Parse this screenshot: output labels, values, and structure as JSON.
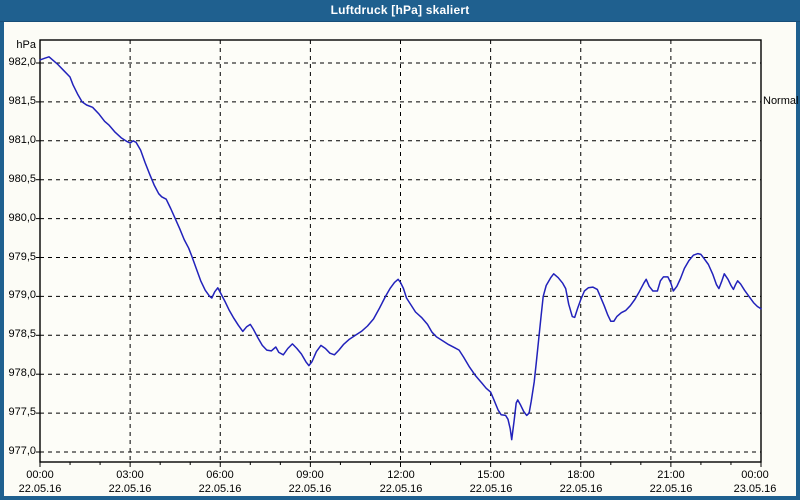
{
  "window": {
    "title": "Luftdruck [hPa] skaliert"
  },
  "colors": {
    "titlebar_bg": "#1f608f",
    "frame_border": "#1f608f",
    "content_bg": "#fcfcf6",
    "line": "#2222bb",
    "grid": "#000000",
    "text": "#000000"
  },
  "chart_data": {
    "type": "line",
    "title": "Luftdruck [hPa] skaliert",
    "unit_label": "hPa",
    "legend_position": "none",
    "grid": "dashed-both-axes",
    "y_axis": {
      "min": 977.0,
      "max": 982.0,
      "step": 0.5,
      "tick_labels": [
        "982,0",
        "981,5",
        "981,0",
        "980,5",
        "980,0",
        "979,5",
        "979,0",
        "978,5",
        "978,0",
        "977,5",
        "977,0"
      ]
    },
    "x_axis": {
      "hours_span": 24,
      "major_step_hours": 3,
      "minor_step_hours": 1,
      "tick_labels": [
        {
          "time": "00:00",
          "date": "22.05.16"
        },
        {
          "time": "03:00",
          "date": "22.05.16"
        },
        {
          "time": "06:00",
          "date": "22.05.16"
        },
        {
          "time": "09:00",
          "date": "22.05.16"
        },
        {
          "time": "12:00",
          "date": "22.05.16"
        },
        {
          "time": "15:00",
          "date": "22.05.16"
        },
        {
          "time": "18:00",
          "date": "22.05.16"
        },
        {
          "time": "21:00",
          "date": "22.05.16"
        },
        {
          "time": "00:00",
          "date": "23.05.16"
        }
      ]
    },
    "right_axis_label": "Normal",
    "normal_level_hpa": 981.5,
    "series": [
      {
        "name": "Luftdruck",
        "color": "#2222bb",
        "points": [
          [
            0.0,
            982.04
          ],
          [
            0.15,
            982.06
          ],
          [
            0.3,
            982.08
          ],
          [
            0.45,
            982.03
          ],
          [
            0.6,
            981.98
          ],
          [
            0.8,
            981.9
          ],
          [
            1.0,
            981.82
          ],
          [
            1.1,
            981.72
          ],
          [
            1.25,
            981.6
          ],
          [
            1.4,
            981.5
          ],
          [
            1.55,
            981.46
          ],
          [
            1.75,
            981.43
          ],
          [
            1.95,
            981.35
          ],
          [
            2.15,
            981.25
          ],
          [
            2.3,
            981.2
          ],
          [
            2.5,
            981.11
          ],
          [
            2.7,
            981.04
          ],
          [
            2.9,
            980.99
          ],
          [
            3.0,
            980.97
          ],
          [
            3.1,
            981.0
          ],
          [
            3.2,
            980.98
          ],
          [
            3.35,
            980.88
          ],
          [
            3.5,
            980.72
          ],
          [
            3.65,
            980.57
          ],
          [
            3.8,
            980.43
          ],
          [
            3.95,
            980.32
          ],
          [
            4.05,
            980.28
          ],
          [
            4.2,
            980.25
          ],
          [
            4.35,
            980.13
          ],
          [
            4.5,
            980.0
          ],
          [
            4.65,
            979.87
          ],
          [
            4.8,
            979.73
          ],
          [
            4.95,
            979.62
          ],
          [
            5.05,
            979.52
          ],
          [
            5.2,
            979.36
          ],
          [
            5.35,
            979.2
          ],
          [
            5.5,
            979.08
          ],
          [
            5.65,
            979.0
          ],
          [
            5.72,
            978.98
          ],
          [
            5.82,
            979.06
          ],
          [
            5.92,
            979.11
          ],
          [
            6.0,
            979.05
          ],
          [
            6.15,
            978.94
          ],
          [
            6.3,
            978.82
          ],
          [
            6.45,
            978.72
          ],
          [
            6.6,
            978.63
          ],
          [
            6.75,
            978.55
          ],
          [
            6.88,
            978.61
          ],
          [
            7.0,
            978.64
          ],
          [
            7.1,
            978.58
          ],
          [
            7.25,
            978.47
          ],
          [
            7.4,
            978.37
          ],
          [
            7.55,
            978.31
          ],
          [
            7.7,
            978.3
          ],
          [
            7.85,
            978.35
          ],
          [
            7.95,
            978.28
          ],
          [
            8.1,
            978.25
          ],
          [
            8.25,
            978.33
          ],
          [
            8.4,
            978.39
          ],
          [
            8.55,
            978.33
          ],
          [
            8.7,
            978.26
          ],
          [
            8.85,
            978.16
          ],
          [
            8.95,
            978.11
          ],
          [
            9.05,
            978.16
          ],
          [
            9.2,
            978.29
          ],
          [
            9.35,
            978.37
          ],
          [
            9.5,
            978.33
          ],
          [
            9.65,
            978.27
          ],
          [
            9.8,
            978.25
          ],
          [
            9.95,
            978.31
          ],
          [
            10.1,
            978.38
          ],
          [
            10.3,
            978.45
          ],
          [
            10.5,
            978.5
          ],
          [
            10.7,
            978.55
          ],
          [
            10.9,
            978.62
          ],
          [
            11.1,
            978.71
          ],
          [
            11.3,
            978.85
          ],
          [
            11.5,
            979.0
          ],
          [
            11.65,
            979.1
          ],
          [
            11.8,
            979.18
          ],
          [
            11.92,
            979.22
          ],
          [
            12.0,
            979.18
          ],
          [
            12.1,
            979.1
          ],
          [
            12.2,
            978.98
          ],
          [
            12.35,
            978.89
          ],
          [
            12.5,
            978.8
          ],
          [
            12.7,
            978.73
          ],
          [
            12.9,
            978.64
          ],
          [
            13.05,
            978.54
          ],
          [
            13.2,
            978.48
          ],
          [
            13.4,
            978.43
          ],
          [
            13.6,
            978.38
          ],
          [
            13.8,
            978.34
          ],
          [
            13.95,
            978.31
          ],
          [
            14.1,
            978.22
          ],
          [
            14.3,
            978.09
          ],
          [
            14.5,
            977.98
          ],
          [
            14.7,
            977.89
          ],
          [
            14.85,
            977.82
          ],
          [
            15.0,
            977.77
          ],
          [
            15.1,
            977.68
          ],
          [
            15.25,
            977.54
          ],
          [
            15.35,
            977.48
          ],
          [
            15.5,
            977.47
          ],
          [
            15.58,
            977.42
          ],
          [
            15.65,
            977.3
          ],
          [
            15.7,
            977.16
          ],
          [
            15.78,
            977.4
          ],
          [
            15.85,
            977.63
          ],
          [
            15.9,
            977.67
          ],
          [
            16.0,
            977.6
          ],
          [
            16.1,
            977.52
          ],
          [
            16.2,
            977.47
          ],
          [
            16.28,
            977.5
          ],
          [
            16.35,
            977.65
          ],
          [
            16.45,
            977.9
          ],
          [
            16.52,
            978.15
          ],
          [
            16.6,
            978.45
          ],
          [
            16.68,
            978.75
          ],
          [
            16.75,
            979.0
          ],
          [
            16.85,
            979.14
          ],
          [
            17.0,
            979.24
          ],
          [
            17.1,
            979.29
          ],
          [
            17.25,
            979.24
          ],
          [
            17.4,
            979.17
          ],
          [
            17.5,
            979.1
          ],
          [
            17.6,
            978.9
          ],
          [
            17.72,
            978.74
          ],
          [
            17.8,
            978.73
          ],
          [
            17.9,
            978.85
          ],
          [
            18.0,
            978.96
          ],
          [
            18.12,
            979.07
          ],
          [
            18.25,
            979.11
          ],
          [
            18.4,
            979.12
          ],
          [
            18.55,
            979.09
          ],
          [
            18.65,
            979.0
          ],
          [
            18.78,
            978.88
          ],
          [
            18.9,
            978.76
          ],
          [
            19.0,
            978.68
          ],
          [
            19.1,
            978.68
          ],
          [
            19.2,
            978.74
          ],
          [
            19.35,
            978.79
          ],
          [
            19.5,
            978.82
          ],
          [
            19.65,
            978.88
          ],
          [
            19.8,
            978.96
          ],
          [
            19.95,
            979.06
          ],
          [
            20.1,
            979.17
          ],
          [
            20.18,
            979.22
          ],
          [
            20.28,
            979.13
          ],
          [
            20.4,
            979.07
          ],
          [
            20.55,
            979.07
          ],
          [
            20.65,
            979.2
          ],
          [
            20.75,
            979.25
          ],
          [
            20.9,
            979.25
          ],
          [
            21.0,
            979.17
          ],
          [
            21.08,
            979.07
          ],
          [
            21.2,
            979.13
          ],
          [
            21.32,
            979.23
          ],
          [
            21.45,
            979.36
          ],
          [
            21.6,
            979.46
          ],
          [
            21.75,
            979.53
          ],
          [
            21.9,
            979.55
          ],
          [
            22.0,
            979.54
          ],
          [
            22.1,
            979.49
          ],
          [
            22.25,
            979.41
          ],
          [
            22.4,
            979.28
          ],
          [
            22.52,
            979.15
          ],
          [
            22.6,
            979.1
          ],
          [
            22.7,
            979.2
          ],
          [
            22.78,
            979.29
          ],
          [
            22.9,
            979.22
          ],
          [
            23.0,
            979.14
          ],
          [
            23.08,
            979.09
          ],
          [
            23.15,
            979.15
          ],
          [
            23.22,
            979.2
          ],
          [
            23.32,
            979.16
          ],
          [
            23.45,
            979.08
          ],
          [
            23.6,
            979.0
          ],
          [
            23.75,
            978.92
          ],
          [
            23.88,
            978.87
          ],
          [
            24.0,
            978.84
          ]
        ]
      }
    ]
  }
}
